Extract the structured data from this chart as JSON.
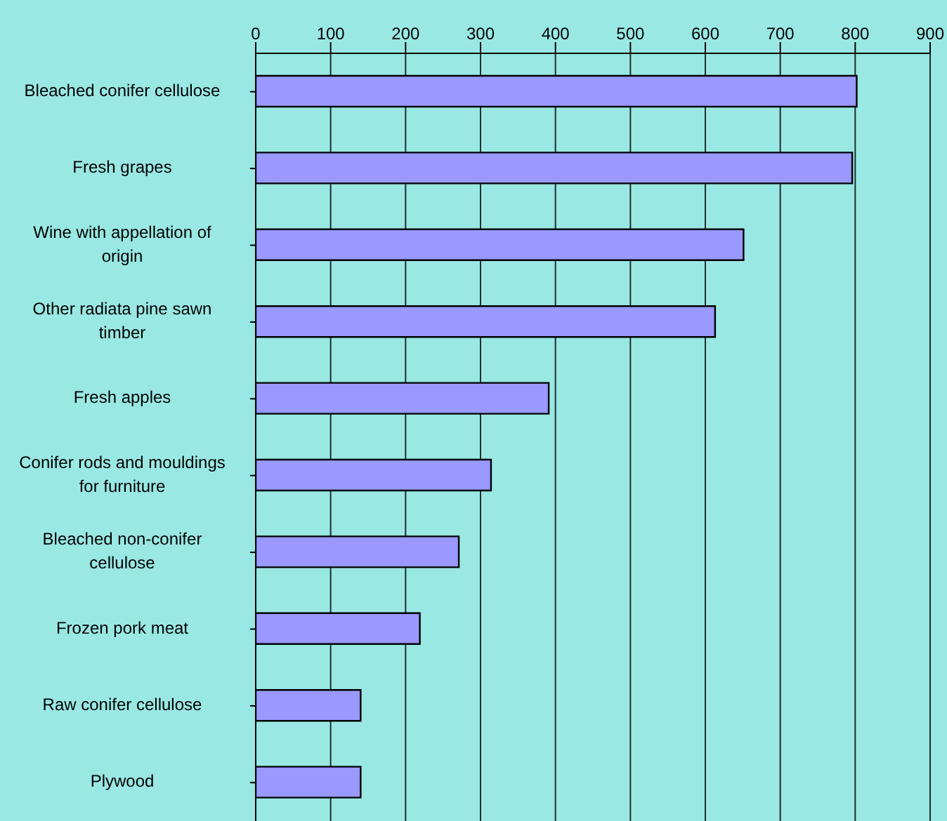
{
  "chart_data": {
    "type": "bar",
    "orientation": "horizontal",
    "categories": [
      "Bleached conifer cellulose",
      "Fresh grapes",
      "Wine with appellation of origin",
      "Other radiata pine sawn timber",
      "Fresh apples",
      "Conifer rods and mouldings for furniture",
      "Bleached non-conifer cellulose",
      "Frozen pork meat",
      "Raw conifer cellulose",
      "Plywood"
    ],
    "values": [
      802,
      796,
      651,
      613,
      391,
      314,
      271,
      219,
      140,
      140
    ],
    "color": "#9999ff",
    "xlim": [
      0,
      900
    ],
    "xticks": [
      0,
      100,
      200,
      300,
      400,
      500,
      600,
      700,
      800,
      900
    ],
    "grid": "x"
  }
}
